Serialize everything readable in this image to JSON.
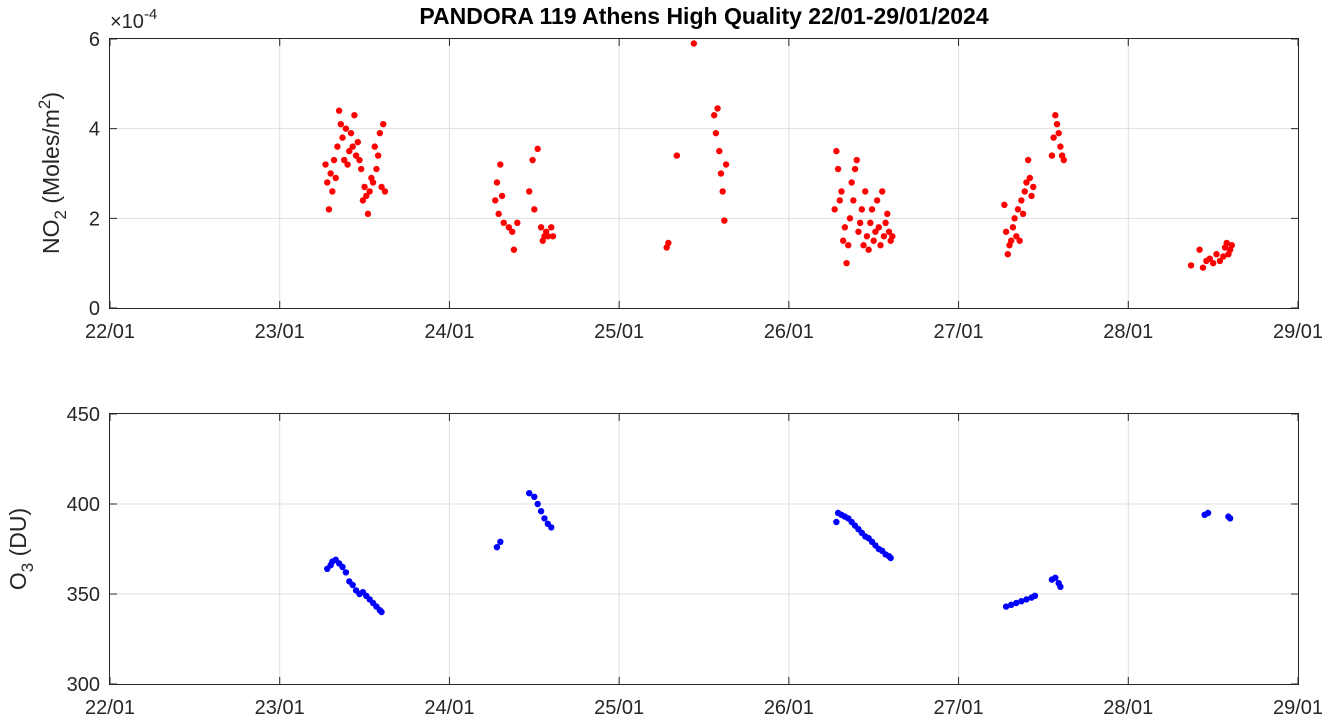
{
  "title": "PANDORA 119 Athens High Quality 22/01-29/01/2024",
  "colors": {
    "no2": "#ff0000",
    "o3": "#0000ff",
    "axis": "#262626",
    "grid": "#dfdfdf"
  },
  "chart_data": [
    {
      "id": "no2",
      "type": "scatter",
      "ylabel_main": "NO",
      "ylabel_sub": "2",
      "ylabel_rest": " (Moles/m",
      "ylabel_sup": "2",
      "ylabel_end": ")",
      "exponent_label": "×10",
      "exponent_power": "-4",
      "xlim": [
        22,
        29
      ],
      "ylim": [
        0,
        6
      ],
      "xticks": [
        "22/01",
        "23/01",
        "24/01",
        "25/01",
        "26/01",
        "27/01",
        "28/01",
        "29/01"
      ],
      "yticks": [
        "0",
        "2",
        "4",
        "6"
      ],
      "grid": true,
      "series": [
        {
          "color": "#ff0000",
          "x": [
            23.27,
            23.28,
            23.29,
            23.3,
            23.31,
            23.32,
            23.33,
            23.34,
            23.35,
            23.36,
            23.37,
            23.38,
            23.39,
            23.4,
            23.41,
            23.42,
            23.43,
            23.44,
            23.45,
            23.46,
            23.47,
            23.48,
            23.49,
            23.5,
            23.51,
            23.52,
            23.53,
            23.54,
            23.55,
            23.56,
            23.57,
            23.58,
            23.59,
            23.6,
            23.61,
            23.62,
            24.27,
            24.28,
            24.29,
            24.3,
            24.31,
            24.32,
            24.35,
            24.37,
            24.38,
            24.4,
            24.47,
            24.49,
            24.5,
            24.52,
            24.54,
            24.55,
            24.56,
            24.57,
            24.58,
            24.6,
            24.61,
            25.28,
            25.29,
            25.34,
            25.44,
            25.56,
            25.57,
            25.58,
            25.59,
            25.6,
            25.61,
            25.62,
            25.63,
            26.27,
            26.28,
            26.29,
            26.3,
            26.31,
            26.32,
            26.33,
            26.34,
            26.35,
            26.36,
            26.37,
            26.38,
            26.39,
            26.4,
            26.41,
            26.42,
            26.43,
            26.44,
            26.45,
            26.46,
            26.47,
            26.48,
            26.49,
            26.5,
            26.51,
            26.52,
            26.53,
            26.54,
            26.55,
            26.56,
            26.57,
            26.58,
            26.59,
            26.6,
            26.61,
            27.27,
            27.28,
            27.29,
            27.3,
            27.31,
            27.32,
            27.33,
            27.34,
            27.35,
            27.36,
            27.37,
            27.38,
            27.39,
            27.4,
            27.41,
            27.42,
            27.43,
            27.44,
            27.55,
            27.56,
            27.57,
            27.58,
            27.59,
            27.6,
            27.61,
            27.62,
            28.37,
            28.42,
            28.44,
            28.46,
            28.48,
            28.5,
            28.52,
            28.54,
            28.56,
            28.57,
            28.58,
            28.59,
            28.6,
            28.61
          ],
          "y": [
            3.2,
            2.8,
            2.2,
            3.0,
            2.6,
            3.3,
            2.9,
            3.6,
            4.4,
            4.1,
            3.8,
            3.3,
            4.0,
            3.2,
            3.5,
            3.9,
            3.6,
            4.3,
            3.4,
            3.7,
            3.3,
            3.1,
            2.4,
            2.7,
            2.5,
            2.1,
            2.6,
            2.9,
            2.8,
            3.6,
            3.1,
            3.4,
            3.9,
            2.7,
            4.1,
            2.6,
            2.4,
            2.8,
            2.1,
            3.2,
            2.5,
            1.9,
            1.8,
            1.7,
            1.3,
            1.9,
            2.6,
            3.3,
            2.2,
            3.55,
            1.8,
            1.5,
            1.6,
            1.7,
            1.6,
            1.8,
            1.6,
            1.35,
            1.45,
            3.4,
            5.9,
            4.3,
            3.9,
            4.45,
            3.5,
            3.0,
            2.6,
            1.95,
            3.2,
            2.2,
            3.5,
            3.1,
            2.4,
            2.6,
            1.5,
            1.8,
            1.0,
            1.4,
            2.0,
            2.8,
            2.4,
            3.1,
            3.3,
            1.7,
            1.9,
            2.2,
            1.4,
            2.6,
            1.6,
            1.3,
            1.9,
            2.2,
            1.5,
            1.7,
            2.4,
            1.8,
            1.4,
            2.6,
            1.6,
            1.9,
            2.1,
            1.7,
            1.5,
            1.6,
            2.3,
            1.7,
            1.2,
            1.4,
            1.5,
            1.8,
            2.0,
            1.6,
            2.2,
            1.5,
            2.4,
            2.1,
            2.6,
            2.8,
            3.3,
            2.9,
            2.5,
            2.7,
            3.4,
            3.8,
            4.3,
            4.1,
            3.9,
            3.6,
            3.4,
            3.3,
            0.95,
            1.3,
            0.9,
            1.05,
            1.1,
            1.0,
            1.2,
            1.05,
            1.15,
            1.35,
            1.45,
            1.2,
            1.3,
            1.4
          ]
        }
      ]
    },
    {
      "id": "o3",
      "type": "scatter",
      "ylabel_main": "O",
      "ylabel_sub": "3",
      "ylabel_rest": " (DU)",
      "xlim": [
        22,
        29
      ],
      "ylim": [
        300,
        450
      ],
      "xticks": [
        "22/01",
        "23/01",
        "24/01",
        "25/01",
        "26/01",
        "27/01",
        "28/01",
        "29/01"
      ],
      "yticks": [
        "300",
        "350",
        "400",
        "450"
      ],
      "grid": true,
      "series": [
        {
          "color": "#0000ff",
          "x": [
            23.28,
            23.3,
            23.31,
            23.33,
            23.35,
            23.37,
            23.39,
            23.41,
            23.43,
            23.45,
            23.47,
            23.49,
            23.51,
            23.53,
            23.55,
            23.57,
            23.59,
            23.6,
            24.28,
            24.3,
            24.47,
            24.5,
            24.52,
            24.54,
            24.56,
            24.58,
            24.6,
            26.28,
            26.29,
            26.31,
            26.33,
            26.35,
            26.37,
            26.39,
            26.41,
            26.43,
            26.45,
            26.47,
            26.49,
            26.51,
            26.53,
            26.55,
            26.57,
            26.59,
            26.6,
            27.28,
            27.31,
            27.34,
            27.37,
            27.4,
            27.43,
            27.45,
            27.55,
            27.57,
            27.59,
            27.6,
            28.45,
            28.47,
            28.59,
            28.6
          ],
          "y": [
            364,
            366,
            368,
            369,
            367,
            365,
            362,
            357,
            355,
            352,
            350,
            351,
            349,
            347,
            345,
            343,
            341,
            340,
            376,
            379,
            406,
            404,
            400,
            396,
            392,
            389,
            387,
            390,
            395,
            394,
            393,
            392,
            390,
            388,
            386,
            384,
            382,
            381,
            379,
            377,
            375,
            374,
            372,
            371,
            370,
            343,
            344,
            345,
            346,
            347,
            348,
            349,
            358,
            359,
            356,
            354,
            394,
            395,
            393,
            392
          ]
        }
      ]
    }
  ]
}
